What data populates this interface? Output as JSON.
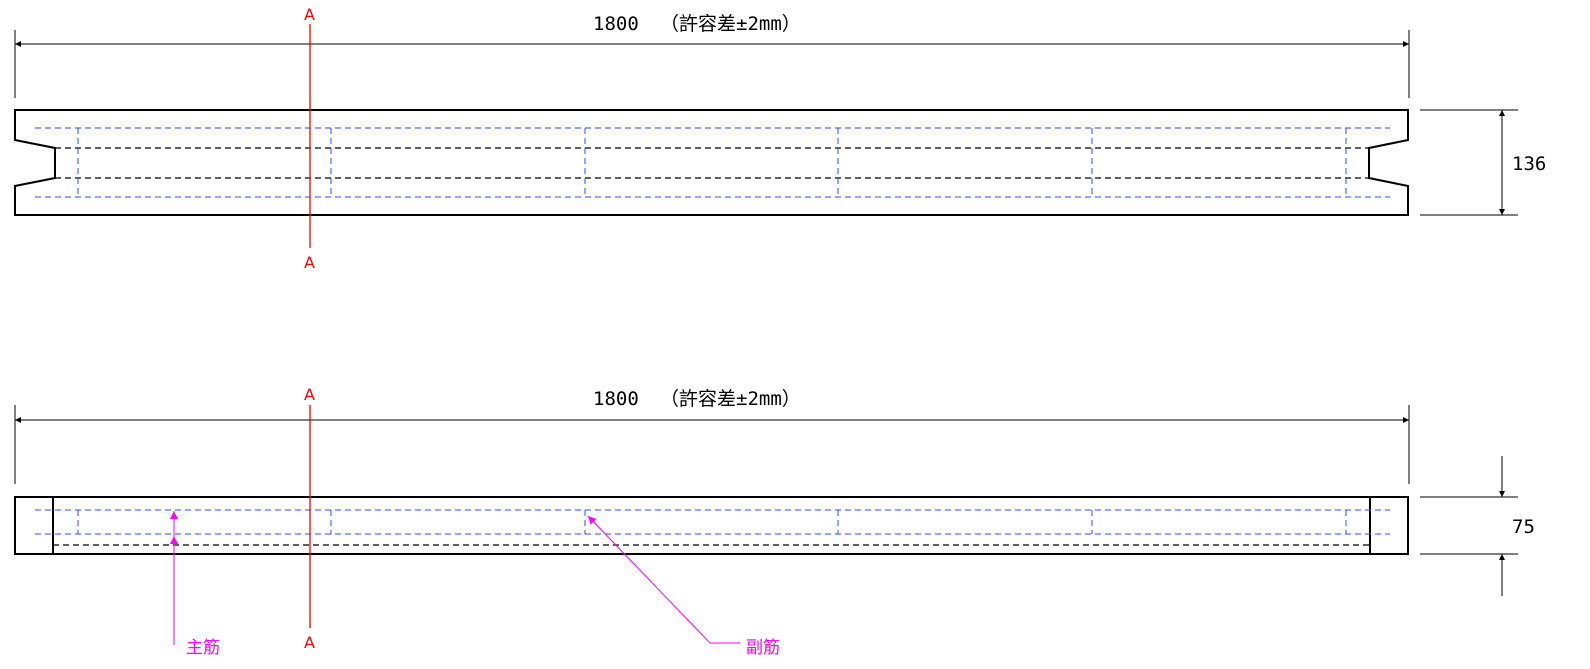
{
  "top_view": {
    "length_dim": "1800",
    "tolerance": "（許容差±2mm）",
    "height_dim": "136",
    "section_top": "A",
    "section_bottom": "A"
  },
  "bottom_view": {
    "length_dim": "1800",
    "tolerance": "（許容差±2mm）",
    "height_dim": "75",
    "section_top": "A",
    "section_bottom": "A",
    "main_rebar_label": "主筋",
    "sub_rebar_label": "副筋"
  },
  "colors": {
    "outline": "#000000",
    "hidden_rebar": "#2a4dff",
    "section_line": "#ff0000",
    "leader": "#ff00ff"
  }
}
